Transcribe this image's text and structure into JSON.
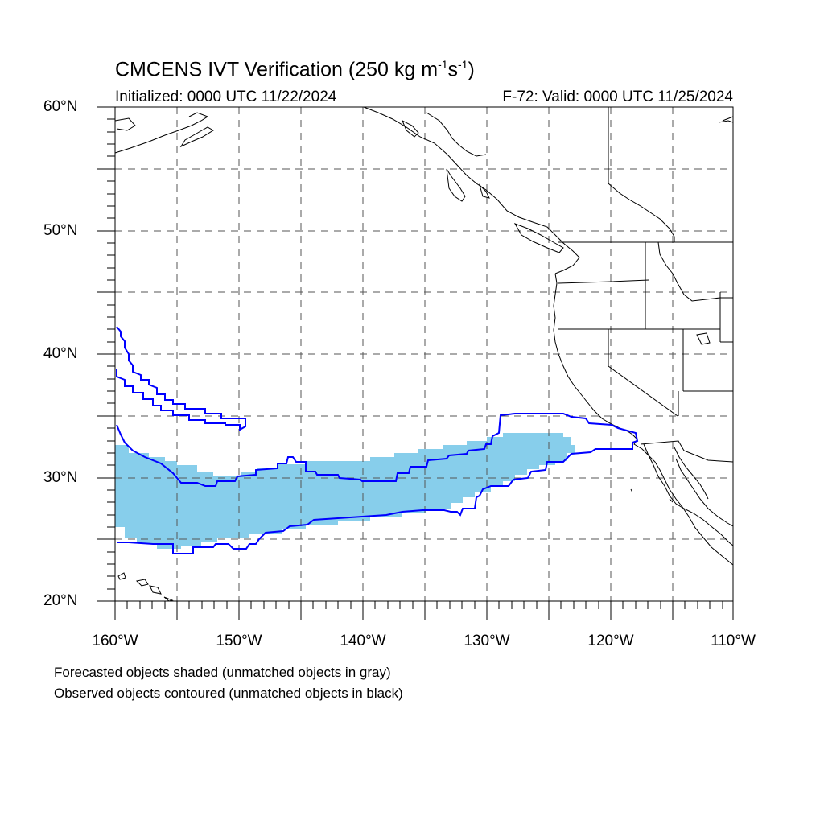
{
  "header": {
    "title_main": "CMCENS IVT Verification (250 kg m",
    "title_sup1": "-1",
    "title_mid": "s",
    "title_sup2": "-1",
    "title_end": ")",
    "initialized": "Initialized: 0000 UTC 11/22/2024",
    "valid": "F-72: Valid: 0000 UTC 11/25/2024"
  },
  "axes": {
    "lat_labels": [
      "60°N",
      "50°N",
      "40°N",
      "30°N",
      "20°N"
    ],
    "lon_labels": [
      "160°W",
      "150°W",
      "140°W",
      "130°W",
      "120°W",
      "110°W"
    ],
    "lat_range": [
      20,
      60
    ],
    "lon_range": [
      -160,
      -110
    ],
    "gridline_spacing_deg": 5
  },
  "footer": {
    "line1": "Forecasted objects shaded (unmatched objects in gray)",
    "line2": "Observed objects contoured (unmatched objects in black)"
  },
  "colors": {
    "forecast_fill": "#87ceeb",
    "observed_contour": "#0000ff",
    "coastline": "#000000",
    "grid": "#555555"
  }
}
